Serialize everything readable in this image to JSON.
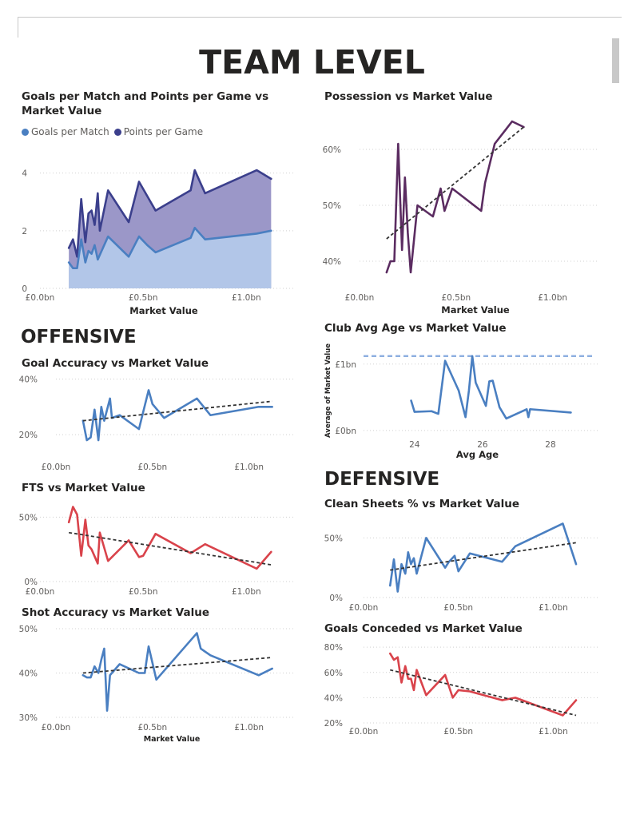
{
  "page": {
    "title": "TEAM LEVEL"
  },
  "sections": {
    "offensive": "OFFENSIVE",
    "defensive": "DEFENSIVE"
  },
  "colors": {
    "blue": "#4a7fc1",
    "navy": "#3b3f8c",
    "navy_fill": "#9b97c8",
    "blue_fill": "#b2c6e8",
    "purple": "#5b2c61",
    "red": "#d9434b",
    "trend": "#333333",
    "grid": "#d0d0d0",
    "avg_line": "#8fb0e0"
  },
  "chart_data": [
    {
      "id": "goals-points",
      "type": "area",
      "title": "Goals per Match and Points per Game vs Market Value",
      "xlabel": "Market Value",
      "ylabel": "",
      "xlim": [
        0,
        1.2
      ],
      "ylim": [
        0,
        4.6
      ],
      "xticks": [
        0,
        0.5,
        1.0
      ],
      "xtick_labels": [
        "£0.0bn",
        "£0.5bn",
        "£1.0bn"
      ],
      "yticks": [
        0,
        2,
        4
      ],
      "ytick_labels": [
        "0",
        "2",
        "4"
      ],
      "legend": "top-left",
      "series": [
        {
          "name": "Goals per Match",
          "color": "#4a7fc1",
          "points": [
            [
              0.14,
              0.9
            ],
            [
              0.16,
              0.7
            ],
            [
              0.18,
              0.7
            ],
            [
              0.2,
              1.7
            ],
            [
              0.22,
              0.9
            ],
            [
              0.235,
              1.3
            ],
            [
              0.25,
              1.2
            ],
            [
              0.265,
              1.5
            ],
            [
              0.28,
              1.0
            ],
            [
              0.33,
              1.8
            ],
            [
              0.43,
              1.1
            ],
            [
              0.48,
              1.8
            ],
            [
              0.52,
              1.5
            ],
            [
              0.56,
              1.25
            ],
            [
              0.73,
              1.75
            ],
            [
              0.75,
              2.1
            ],
            [
              0.8,
              1.7
            ],
            [
              1.05,
              1.9
            ],
            [
              1.12,
              2.0
            ]
          ]
        },
        {
          "name": "Points per Game",
          "color": "#3b3f8c",
          "points": [
            [
              0.14,
              1.4
            ],
            [
              0.16,
              1.7
            ],
            [
              0.18,
              1.1
            ],
            [
              0.2,
              3.1
            ],
            [
              0.22,
              1.6
            ],
            [
              0.235,
              2.6
            ],
            [
              0.25,
              2.7
            ],
            [
              0.265,
              2.2
            ],
            [
              0.28,
              3.3
            ],
            [
              0.29,
              2.0
            ],
            [
              0.33,
              3.4
            ],
            [
              0.43,
              2.3
            ],
            [
              0.48,
              3.7
            ],
            [
              0.56,
              2.7
            ],
            [
              0.73,
              3.4
            ],
            [
              0.75,
              4.1
            ],
            [
              0.8,
              3.3
            ],
            [
              1.05,
              4.1
            ],
            [
              1.12,
              3.8
            ]
          ]
        }
      ]
    },
    {
      "id": "possession",
      "type": "line",
      "title": "Possession vs Market Value",
      "xlabel": "Market Value",
      "ylabel": "",
      "xlim": [
        0,
        1.2
      ],
      "ylim": [
        36,
        66
      ],
      "xticks": [
        0,
        0.5,
        1.0
      ],
      "xtick_labels": [
        "£0.0bn",
        "£0.5bn",
        "£1.0bn"
      ],
      "yticks": [
        40,
        50,
        60
      ],
      "ytick_labels": [
        "40%",
        "50%",
        "60%"
      ],
      "series": [
        {
          "name": "",
          "color": "#5b2c61",
          "points": [
            [
              0.14,
              38
            ],
            [
              0.16,
              40
            ],
            [
              0.18,
              40
            ],
            [
              0.2,
              61
            ],
            [
              0.22,
              42
            ],
            [
              0.235,
              55
            ],
            [
              0.25,
              45
            ],
            [
              0.265,
              38
            ],
            [
              0.3,
              50
            ],
            [
              0.38,
              48
            ],
            [
              0.42,
              53
            ],
            [
              0.44,
              49
            ],
            [
              0.48,
              53
            ],
            [
              0.63,
              49
            ],
            [
              0.65,
              54
            ],
            [
              0.7,
              61
            ],
            [
              0.79,
              65
            ],
            [
              0.85,
              64
            ]
          ]
        }
      ],
      "trend": [
        [
          0.14,
          44
        ],
        [
          0.85,
          64
        ]
      ]
    },
    {
      "id": "goal-accuracy",
      "type": "line",
      "title": "Goal Accuracy vs Market Value",
      "xlabel": "",
      "ylabel": "",
      "xlim": [
        0,
        1.2
      ],
      "ylim": [
        16,
        41
      ],
      "xticks": [
        0,
        0.5,
        1.0
      ],
      "xtick_labels": [
        "£0.0bn",
        "£0.5bn",
        "£1.0bn"
      ],
      "yticks": [
        20,
        40
      ],
      "ytick_labels": [
        "20%",
        "40%"
      ],
      "series": [
        {
          "name": "",
          "color": "#4a7fc1",
          "points": [
            [
              0.14,
              25
            ],
            [
              0.16,
              18
            ],
            [
              0.18,
              19
            ],
            [
              0.2,
              29
            ],
            [
              0.22,
              18
            ],
            [
              0.235,
              30
            ],
            [
              0.25,
              25
            ],
            [
              0.28,
              33
            ],
            [
              0.29,
              26
            ],
            [
              0.33,
              27
            ],
            [
              0.43,
              22
            ],
            [
              0.48,
              36
            ],
            [
              0.5,
              31
            ],
            [
              0.56,
              26
            ],
            [
              0.73,
              33
            ],
            [
              0.8,
              27
            ],
            [
              1.05,
              30
            ],
            [
              1.12,
              30
            ]
          ]
        }
      ],
      "trend": [
        [
          0.14,
          25
        ],
        [
          1.12,
          32
        ]
      ]
    },
    {
      "id": "club-avg-age",
      "type": "line",
      "title": "Club Avg Age vs Market Value",
      "xlabel": "Avg Age",
      "ylabel": "Average of Market Value",
      "xlim": [
        22.5,
        29.2
      ],
      "ylim": [
        -0.05,
        1.25
      ],
      "xticks": [
        24,
        26,
        28
      ],
      "xtick_labels": [
        "24",
        "26",
        "28"
      ],
      "yticks": [
        0,
        1.0
      ],
      "ytick_labels": [
        "£0bn",
        "£1bn"
      ],
      "series": [
        {
          "name": "",
          "color": "#4a7fc1",
          "points": [
            [
              23.9,
              0.45
            ],
            [
              24.0,
              0.28
            ],
            [
              24.5,
              0.29
            ],
            [
              24.7,
              0.25
            ],
            [
              24.9,
              1.05
            ],
            [
              25.3,
              0.6
            ],
            [
              25.5,
              0.2
            ],
            [
              25.6,
              0.6
            ],
            [
              25.7,
              1.12
            ],
            [
              25.8,
              0.72
            ],
            [
              26.1,
              0.37
            ],
            [
              26.2,
              0.74
            ],
            [
              26.3,
              0.75
            ],
            [
              26.5,
              0.35
            ],
            [
              26.7,
              0.18
            ],
            [
              27.3,
              0.32
            ],
            [
              27.35,
              0.2
            ],
            [
              27.4,
              0.32
            ],
            [
              28.6,
              0.27
            ]
          ]
        }
      ],
      "average": 1.12
    },
    {
      "id": "fts",
      "type": "line",
      "title": "FTS vs Market Value",
      "xlabel": "",
      "ylabel": "",
      "xlim": [
        0,
        1.2
      ],
      "ylim": [
        0,
        62
      ],
      "xticks": [
        0,
        0.5,
        1.0
      ],
      "xtick_labels": [
        "£0.0bn",
        "£0.5bn",
        "£1.0bn"
      ],
      "yticks": [
        0,
        50
      ],
      "ytick_labels": [
        "0%",
        "50%"
      ],
      "series": [
        {
          "name": "",
          "color": "#d9434b",
          "points": [
            [
              0.14,
              46
            ],
            [
              0.16,
              58
            ],
            [
              0.18,
              52
            ],
            [
              0.2,
              20
            ],
            [
              0.22,
              48
            ],
            [
              0.235,
              28
            ],
            [
              0.25,
              25
            ],
            [
              0.28,
              14
            ],
            [
              0.29,
              38
            ],
            [
              0.33,
              16
            ],
            [
              0.43,
              32
            ],
            [
              0.48,
              19
            ],
            [
              0.5,
              20
            ],
            [
              0.56,
              37
            ],
            [
              0.73,
              22
            ],
            [
              0.8,
              29
            ],
            [
              1.05,
              10
            ],
            [
              1.12,
              23
            ]
          ]
        }
      ],
      "trend": [
        [
          0.14,
          38
        ],
        [
          1.12,
          13
        ]
      ]
    },
    {
      "id": "clean-sheets",
      "type": "line",
      "title": "Clean Sheets % vs Market Value",
      "xlabel": "",
      "ylabel": "",
      "xlim": [
        0,
        1.2
      ],
      "ylim": [
        0,
        67
      ],
      "xticks": [
        0,
        0.5,
        1.0
      ],
      "xtick_labels": [
        "£0.0bn",
        "£0.5bn",
        "£1.0bn"
      ],
      "yticks": [
        0,
        50
      ],
      "ytick_labels": [
        "0%",
        "50%"
      ],
      "series": [
        {
          "name": "",
          "color": "#4a7fc1",
          "points": [
            [
              0.14,
              10
            ],
            [
              0.16,
              32
            ],
            [
              0.18,
              5
            ],
            [
              0.2,
              28
            ],
            [
              0.22,
              20
            ],
            [
              0.235,
              38
            ],
            [
              0.25,
              28
            ],
            [
              0.265,
              33
            ],
            [
              0.28,
              20
            ],
            [
              0.33,
              50
            ],
            [
              0.43,
              25
            ],
            [
              0.45,
              30
            ],
            [
              0.48,
              35
            ],
            [
              0.5,
              22
            ],
            [
              0.56,
              37
            ],
            [
              0.73,
              30
            ],
            [
              0.8,
              43
            ],
            [
              1.05,
              62
            ],
            [
              1.12,
              28
            ]
          ]
        }
      ],
      "trend": [
        [
          0.14,
          23
        ],
        [
          1.12,
          46
        ]
      ]
    },
    {
      "id": "shot-accuracy",
      "type": "line",
      "title": "Shot Accuracy vs Market Value",
      "xlabel": "Market Value",
      "ylabel": "",
      "xlim": [
        0,
        1.2
      ],
      "ylim": [
        30,
        50
      ],
      "xticks": [
        0,
        0.5,
        1.0
      ],
      "xtick_labels": [
        "£0.0bn",
        "£0.5bn",
        "£1.0bn"
      ],
      "yticks": [
        30,
        40,
        50
      ],
      "ytick_labels": [
        "30%",
        "40%",
        "50%"
      ],
      "series": [
        {
          "name": "",
          "color": "#4a7fc1",
          "points": [
            [
              0.14,
              39.5
            ],
            [
              0.16,
              39
            ],
            [
              0.18,
              39
            ],
            [
              0.2,
              41.5
            ],
            [
              0.22,
              40
            ],
            [
              0.235,
              43
            ],
            [
              0.25,
              45.5
            ],
            [
              0.265,
              31.5
            ],
            [
              0.28,
              39.5
            ],
            [
              0.33,
              42
            ],
            [
              0.43,
              40
            ],
            [
              0.46,
              40
            ],
            [
              0.48,
              46
            ],
            [
              0.52,
              38.5
            ],
            [
              0.73,
              49
            ],
            [
              0.75,
              45.5
            ],
            [
              0.8,
              44
            ],
            [
              1.05,
              39.5
            ],
            [
              1.12,
              41
            ]
          ]
        }
      ],
      "trend": [
        [
          0.14,
          40
        ],
        [
          1.12,
          43.5
        ]
      ]
    },
    {
      "id": "goals-conceded",
      "type": "line",
      "title": "Goals Conceded vs Market Value",
      "xlabel": "",
      "ylabel": "",
      "xlim": [
        0,
        1.2
      ],
      "ylim": [
        20,
        82
      ],
      "xticks": [
        0,
        0.5,
        1.0
      ],
      "xtick_labels": [
        "£0.0bn",
        "£0.5bn",
        "£1.0bn"
      ],
      "yticks": [
        20,
        40,
        60,
        80
      ],
      "ytick_labels": [
        "20%",
        "40%",
        "60%",
        "80%"
      ],
      "series": [
        {
          "name": "",
          "color": "#d9434b",
          "points": [
            [
              0.14,
              75
            ],
            [
              0.16,
              70
            ],
            [
              0.18,
              72
            ],
            [
              0.2,
              52
            ],
            [
              0.22,
              65
            ],
            [
              0.235,
              55
            ],
            [
              0.25,
              55
            ],
            [
              0.265,
              46
            ],
            [
              0.28,
              62
            ],
            [
              0.33,
              42
            ],
            [
              0.43,
              58
            ],
            [
              0.47,
              40
            ],
            [
              0.5,
              46
            ],
            [
              0.56,
              45
            ],
            [
              0.73,
              38
            ],
            [
              0.8,
              40
            ],
            [
              1.05,
              26
            ],
            [
              1.12,
              38
            ]
          ]
        }
      ],
      "trend": [
        [
          0.14,
          62
        ],
        [
          1.12,
          26
        ]
      ]
    }
  ]
}
